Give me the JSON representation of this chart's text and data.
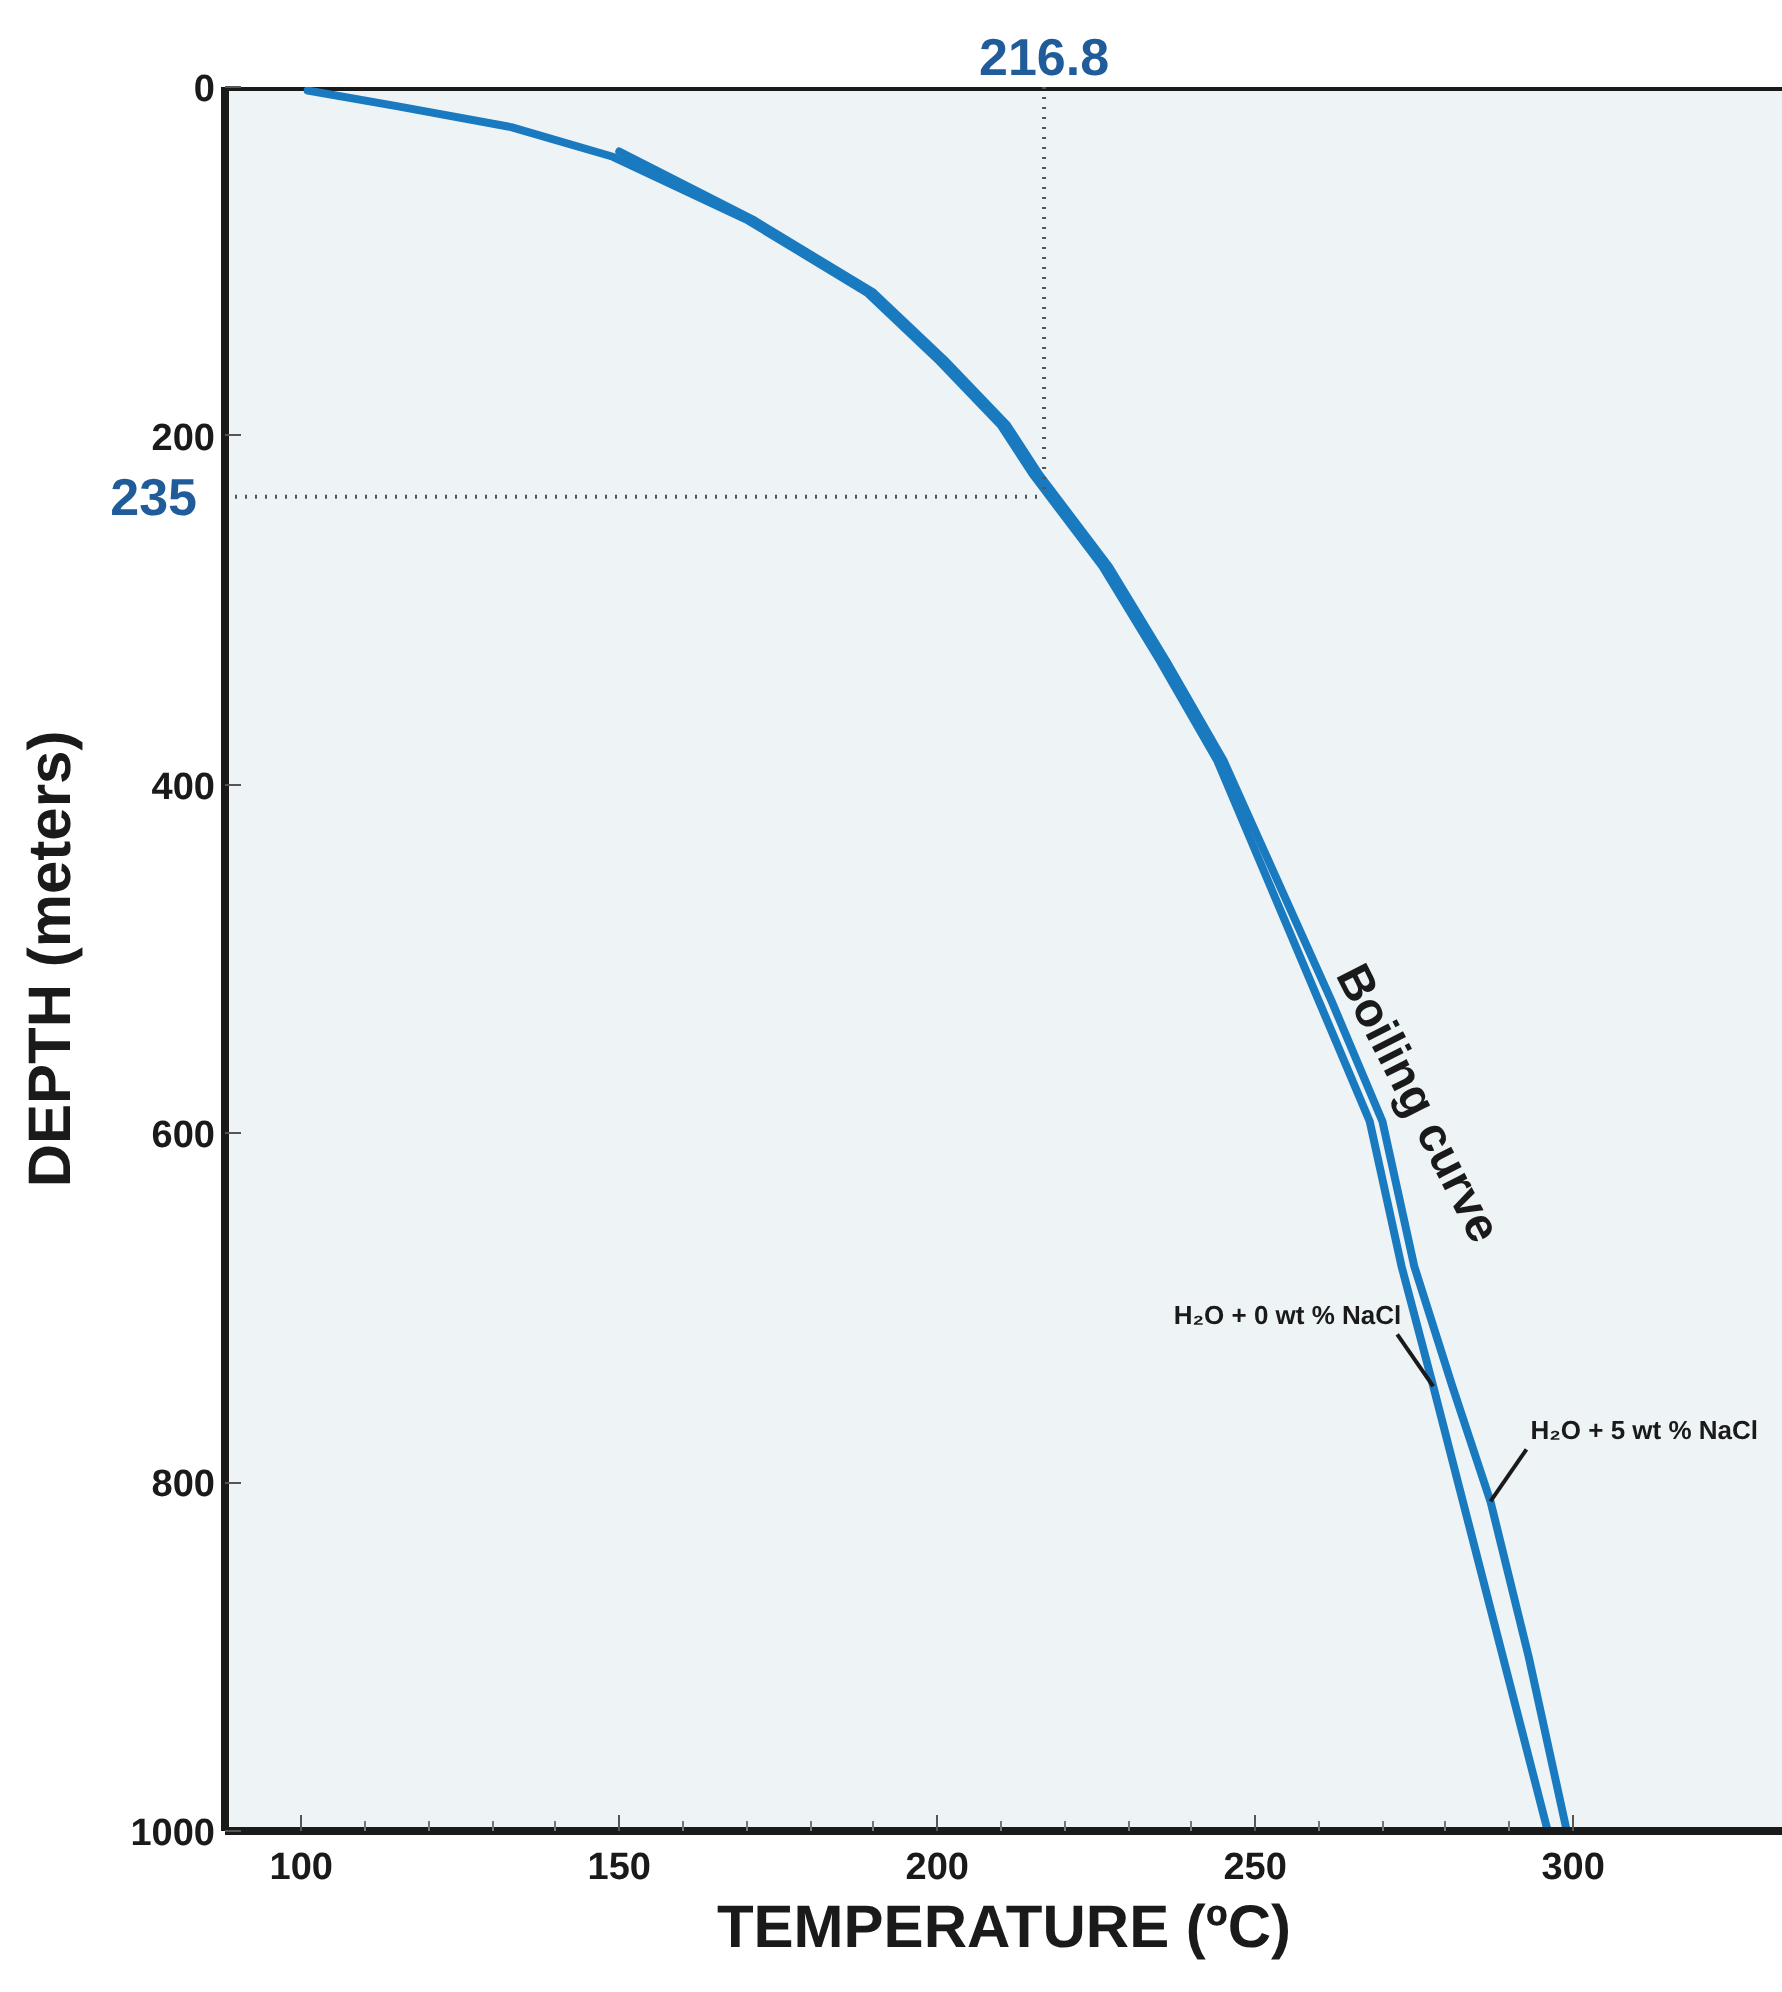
{
  "chart_data": {
    "type": "line",
    "xlabel": "TEMPERATURE (ºC)",
    "ylabel": "DEPTH (meters)",
    "xlim": [
      88,
      333
    ],
    "ylim": [
      1000,
      0
    ],
    "xticks": [
      100,
      150,
      200,
      250,
      300
    ],
    "yticks": [
      0,
      200,
      400,
      600,
      800,
      1000
    ],
    "grid": false,
    "marker": "none",
    "line_style": "solid",
    "series": [
      {
        "name": "H₂O + 0 wt % NaCl",
        "color": "#1a7abf",
        "x": [
          101,
          115,
          133,
          149,
          170,
          189,
          200,
          210,
          215,
          226,
          235,
          244,
          252,
          260,
          268,
          273,
          278,
          284,
          290,
          296
        ],
        "values": [
          2,
          11,
          23,
          40,
          76,
          118,
          156,
          194,
          222,
          275,
          329,
          386,
          455,
          524,
          593,
          676,
          745,
          830,
          915,
          1000
        ]
      },
      {
        "name": "H₂O + 5 wt % NaCl",
        "color": "#1a7abf",
        "x": [
          150,
          171,
          190,
          201,
          211,
          216,
          227,
          236,
          245,
          253.5,
          262,
          270,
          275,
          281,
          287,
          293,
          299
        ],
        "values": [
          37,
          76,
          118,
          156,
          194,
          222,
          275,
          329,
          386,
          455,
          524,
          593,
          676,
          745,
          811,
          900,
          1000
        ]
      }
    ],
    "ref_lines": [
      {
        "axis": "x",
        "value": 216.8,
        "label": "216.8",
        "color": "#555555",
        "line_style": "dotted"
      },
      {
        "axis": "y",
        "value": 235,
        "label": "235",
        "color": "#555555",
        "line_style": "dotted"
      }
    ],
    "annotations": [
      {
        "text": "Boiling curve",
        "x": 268,
        "y": 590
      }
    ]
  }
}
